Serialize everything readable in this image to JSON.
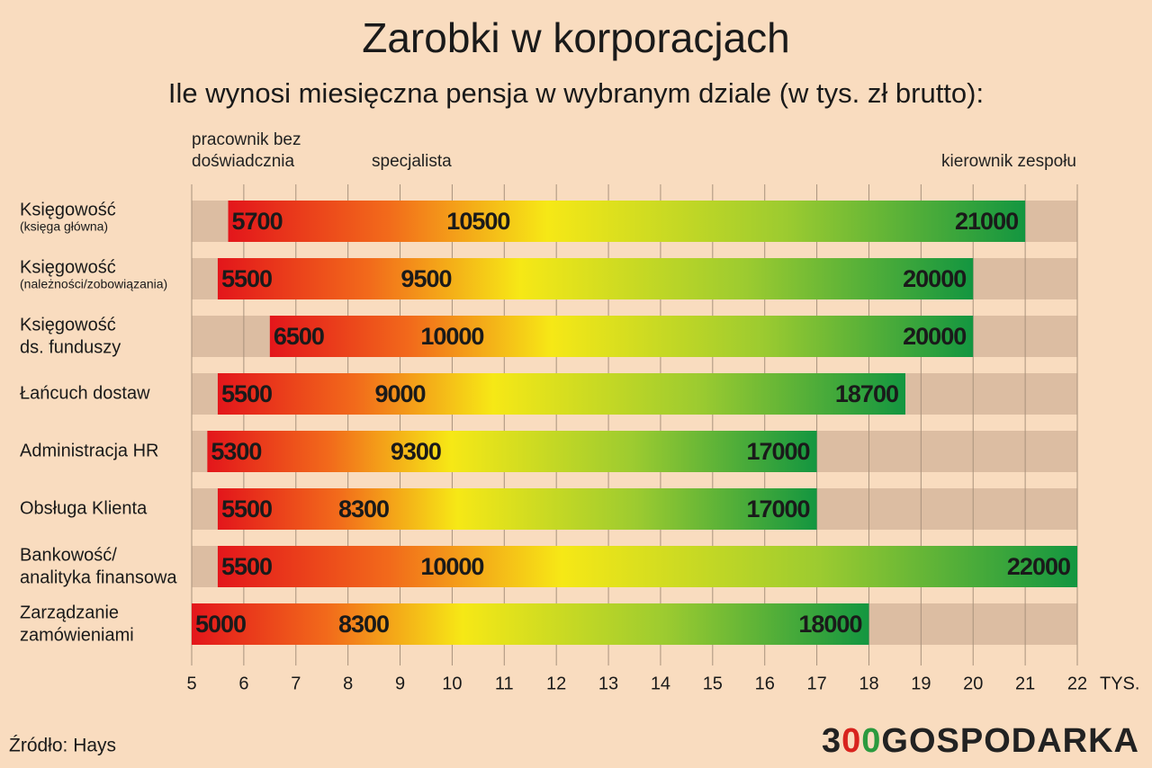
{
  "chart_data": {
    "type": "range_bar",
    "title": "Zarobki w korporacjach",
    "subtitle": "Ile wynosi miesięczna pensja w wybranym dziale (w tys. zł brutto):",
    "categories": [
      [
        "Księgowość"
      ],
      [
        "Księgowość"
      ],
      [
        "Księgowość",
        "ds. funduszy"
      ],
      [
        "Łańcuch dostaw"
      ],
      [
        "Administracja HR"
      ],
      [
        "Obsługa Klienta"
      ],
      [
        "Bankowość/",
        "analityka finansowa"
      ],
      [
        "Zarządzanie",
        "zamówieniami"
      ]
    ],
    "category_notes": [
      "(księga główna)",
      "(należności/zobowiązania)",
      null,
      null,
      null,
      null,
      null,
      null
    ],
    "series": [
      {
        "name": "pracownik bez doświadcznia",
        "values": [
          5.7,
          5.5,
          6.5,
          5.5,
          5.3,
          5.5,
          5.5,
          5.0
        ],
        "value_labels": [
          "5700",
          "5500",
          "6500",
          "5500",
          "5300",
          "5500",
          "5500",
          "5000"
        ]
      },
      {
        "name": "specjalista",
        "values": [
          10.5,
          9.5,
          10,
          9,
          9.3,
          8.3,
          10,
          8.3
        ],
        "value_labels": [
          "10500",
          "9500",
          "10000",
          "9000",
          "9300",
          "8300",
          "10000",
          "8300"
        ]
      },
      {
        "name": "kierownik zespołu",
        "values": [
          21,
          20,
          20,
          18.7,
          17,
          17,
          22,
          18
        ],
        "value_labels": [
          "21000",
          "20000",
          "20000",
          "18700",
          "17000",
          "17000",
          "22000",
          "18000"
        ]
      }
    ],
    "colors": [
      "#e3161b",
      "#f26a1b",
      "#f6e816",
      "#9ccb30",
      "#139640"
    ],
    "xlim": [
      5,
      22
    ],
    "xticks": [
      5,
      6,
      7,
      8,
      9,
      10,
      11,
      12,
      13,
      14,
      15,
      16,
      17,
      18,
      19,
      20,
      21,
      22
    ],
    "x_unit": "TYS.",
    "grid": true,
    "source": "Źródło: Hays",
    "logo": [
      "3",
      "0",
      "0",
      "GOSPODARKA"
    ]
  }
}
